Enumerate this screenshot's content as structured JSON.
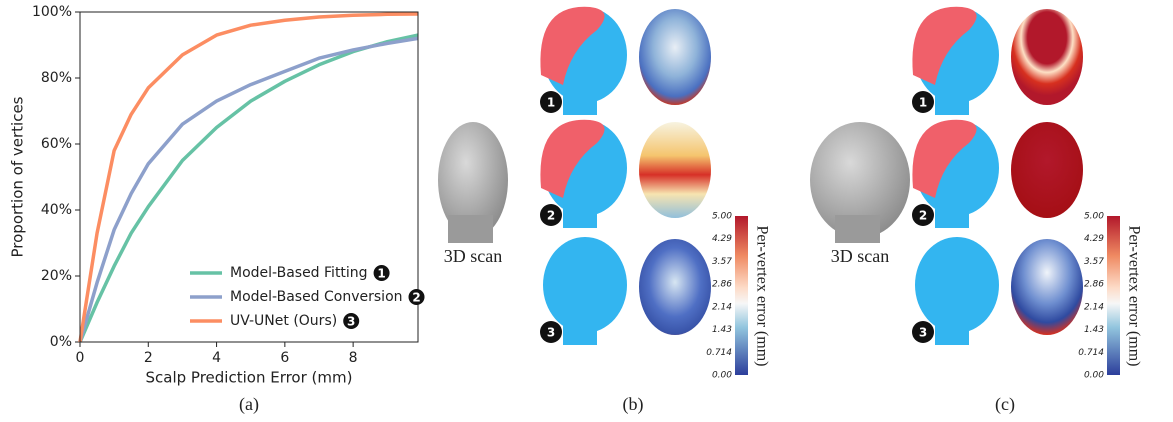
{
  "chart_data": {
    "type": "line",
    "xlabel": "Scalp Prediction Error (mm)",
    "ylabel": "Proportion of vertices",
    "caption": "(a)",
    "x": [
      0,
      0.5,
      1,
      1.5,
      2,
      3,
      4,
      5,
      6,
      7,
      8,
      9,
      9.9
    ],
    "series": [
      {
        "name": "Model-Based Fitting",
        "marker": "1",
        "color": "#66c2a5",
        "values": [
          0,
          12,
          23,
          33,
          41,
          55,
          65,
          73,
          79,
          84,
          88,
          91,
          93
        ]
      },
      {
        "name": "Model-Based Conversion",
        "marker": "2",
        "color": "#8da0cb",
        "values": [
          0,
          18,
          34,
          45,
          54,
          66,
          73,
          78,
          82,
          86,
          88.5,
          90.5,
          92
        ]
      },
      {
        "name": "UV-UNet (Ours)",
        "marker": "3",
        "color": "#fc8d62",
        "values": [
          0,
          33,
          58,
          69,
          77,
          87,
          93,
          96,
          97.5,
          98.5,
          99,
          99.3,
          99.4
        ]
      }
    ],
    "xlim": [
      0,
      9.9
    ],
    "ylim": [
      0,
      100
    ],
    "xticks": [
      0,
      2,
      4,
      6,
      8
    ],
    "yticks": [
      {
        "value": 0,
        "label": "0%"
      },
      {
        "value": 20,
        "label": "20%"
      },
      {
        "value": 40,
        "label": "40%"
      },
      {
        "value": 60,
        "label": "60%"
      },
      {
        "value": 80,
        "label": "80%"
      },
      {
        "value": 100,
        "label": "100%"
      }
    ],
    "legend": "lower right"
  },
  "panels": [
    {
      "caption": "(b)",
      "scan_label": "3D scan",
      "badges": [
        "1",
        "2",
        "3"
      ],
      "colorbar_title": "Per-vertex error (mm)",
      "colorbar_ticks": [
        "5.00",
        "4.29",
        "3.57",
        "2.86",
        "2.14",
        "1.43",
        "0.714",
        "0.00"
      ]
    },
    {
      "caption": "(c)",
      "scan_label": "3D scan",
      "badges": [
        "1",
        "2",
        "3"
      ],
      "colorbar_title": "Per-vertex error (mm)",
      "colorbar_ticks": [
        "5.00",
        "4.29",
        "3.57",
        "2.86",
        "2.14",
        "1.43",
        "0.714",
        "0.00"
      ]
    }
  ]
}
